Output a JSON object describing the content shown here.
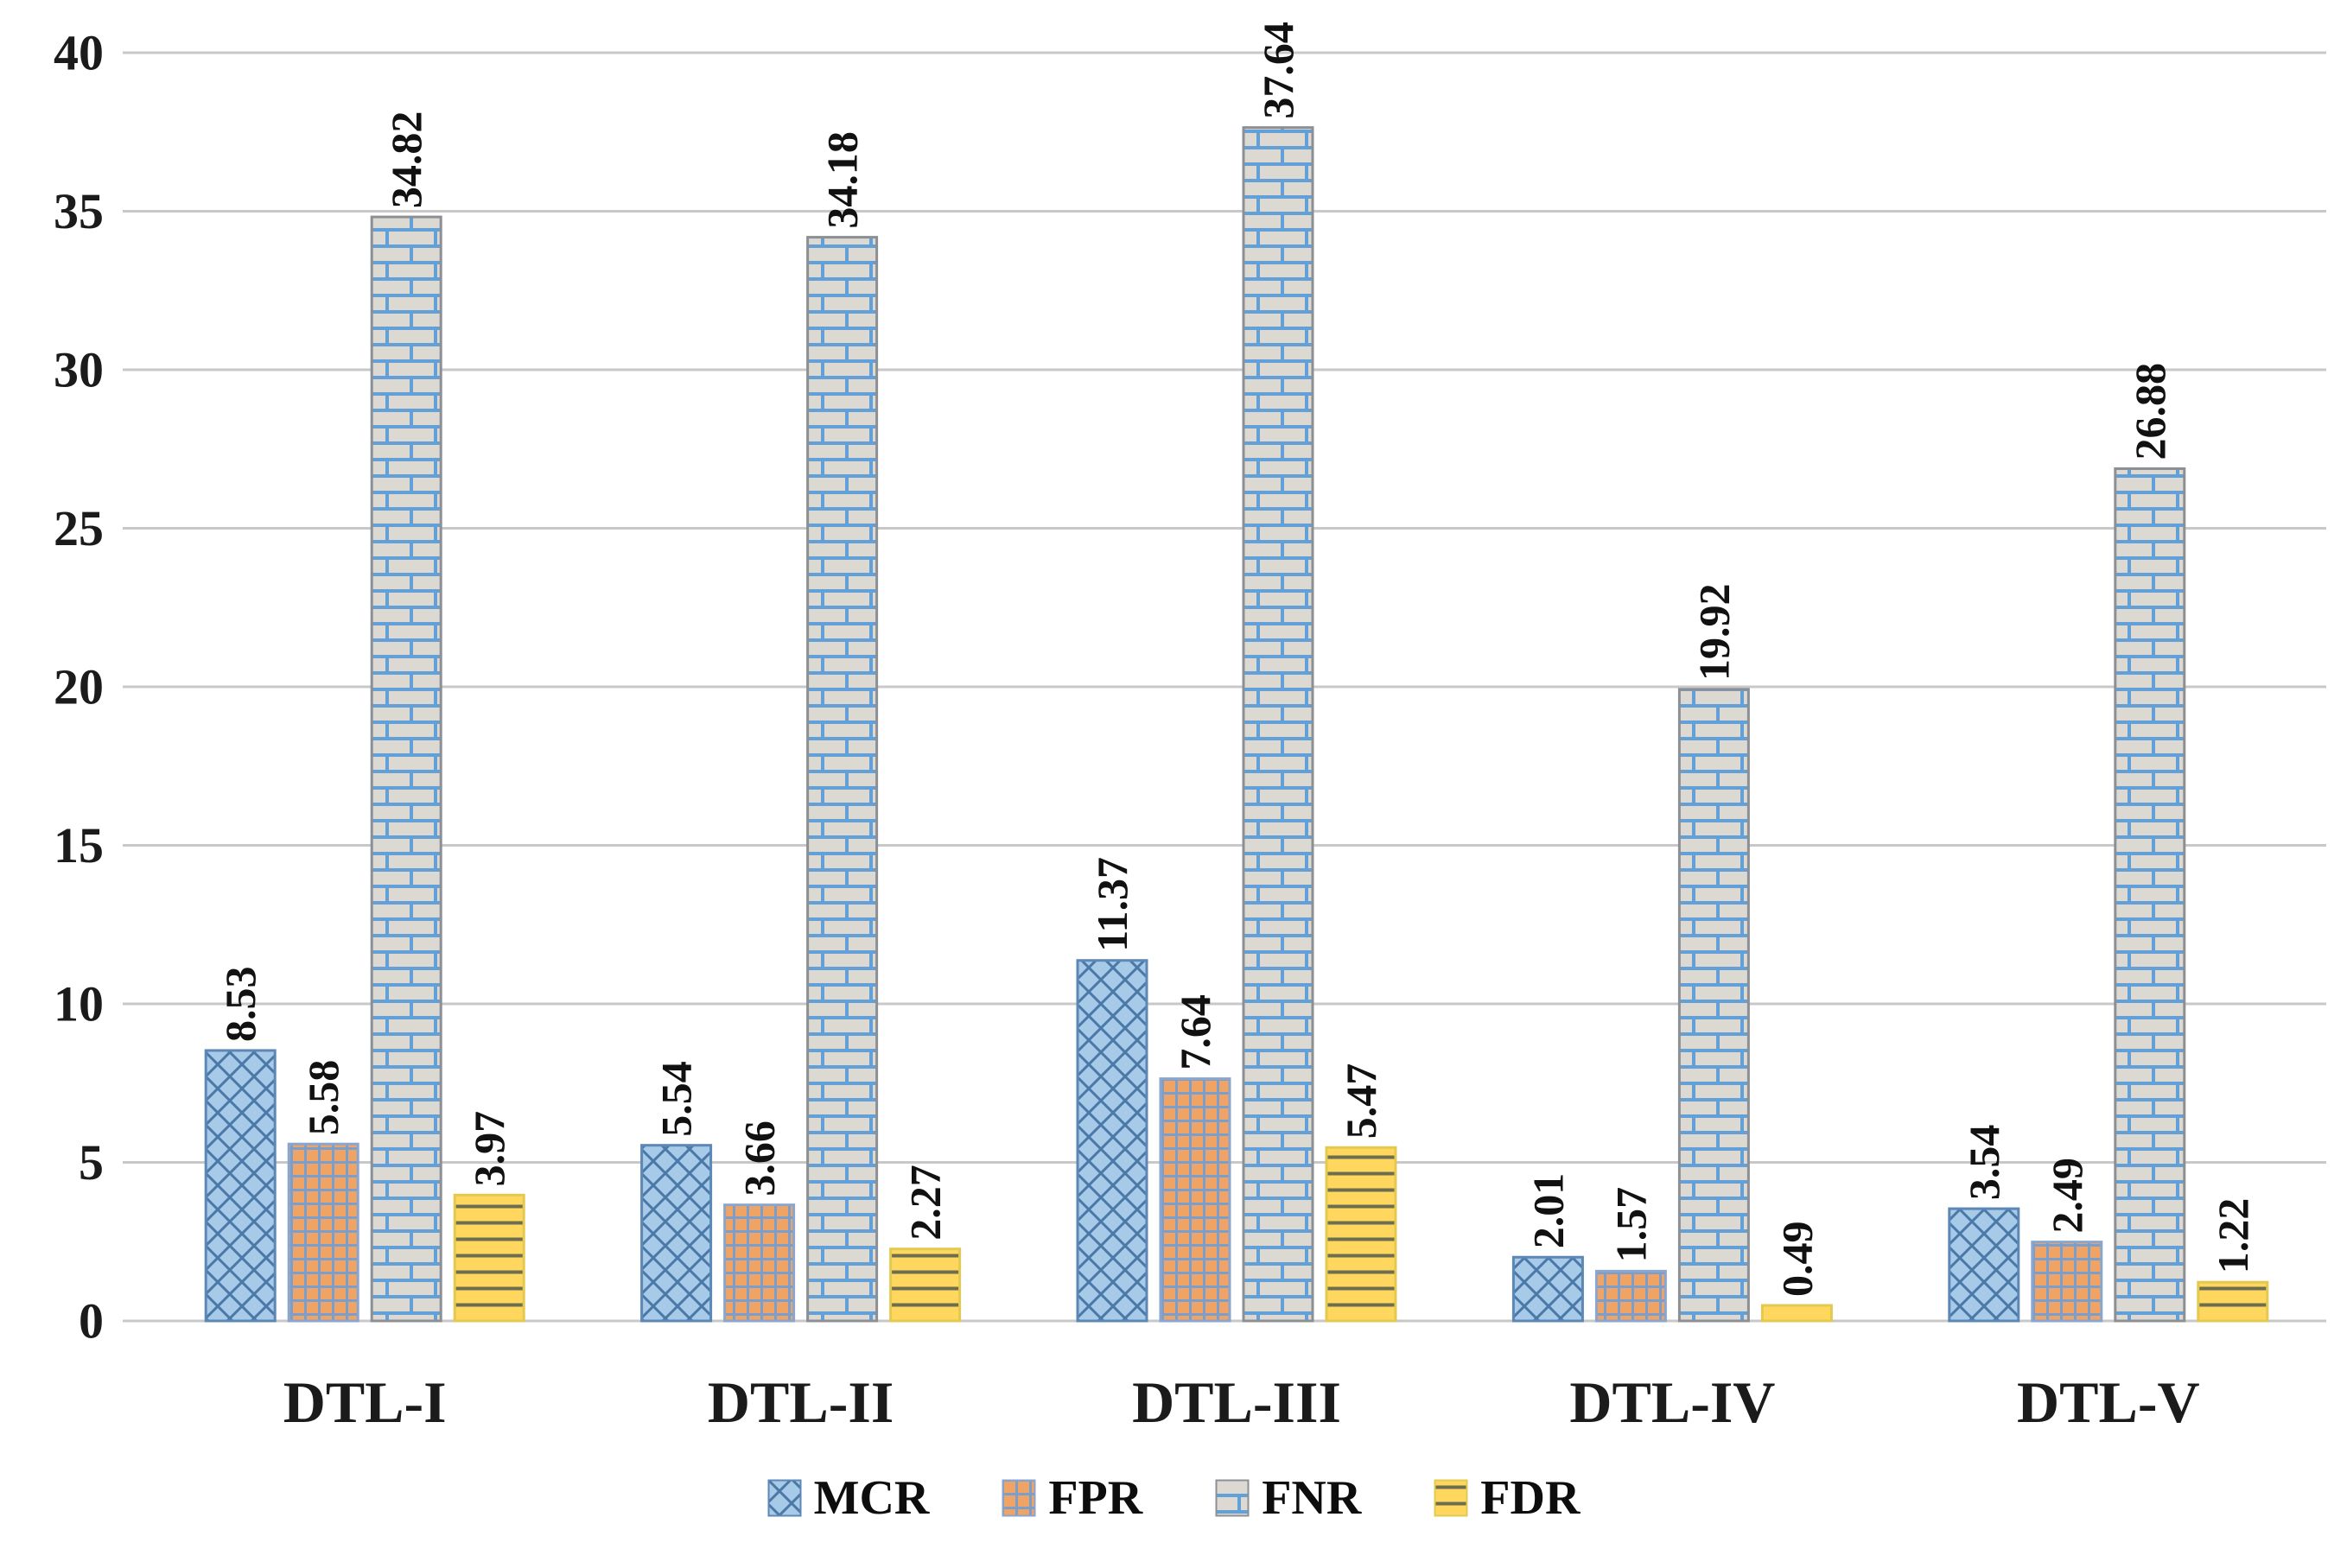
{
  "chart_data": {
    "type": "bar",
    "title": "",
    "categories": [
      "DTL-I",
      "DTL-II",
      "DTL-III",
      "DTL-IV",
      "DTL-V"
    ],
    "series": [
      {
        "name": "MCR",
        "values": [
          8.53,
          5.54,
          11.37,
          2.01,
          3.54
        ],
        "pattern": "diagonal-crosshatch",
        "fill": "#a8cae9",
        "line": "#4a79a8",
        "border": "#5d87b4"
      },
      {
        "name": "FPR",
        "values": [
          5.58,
          3.66,
          7.64,
          1.57,
          2.49
        ],
        "pattern": "small-grid",
        "fill": "#efa365",
        "line": "#7b9ecb",
        "border": "#8aa6cf"
      },
      {
        "name": "FNR",
        "values": [
          34.82,
          34.18,
          37.64,
          19.92,
          26.88
        ],
        "pattern": "brick",
        "fill": "#dcd8d2",
        "line": "#64a0d8",
        "border": "#8c8f94"
      },
      {
        "name": "FDR",
        "values": [
          3.97,
          2.27,
          5.47,
          0.49,
          1.22
        ],
        "pattern": "horizontal-lines",
        "fill": "#ffd75e",
        "line": "#6d6d50",
        "border": "#e3c94f"
      }
    ],
    "value_label_decimals": 2,
    "value_label_orientation": "rotated-90",
    "ylim": [
      0,
      40
    ],
    "ytick_step": 5,
    "ytick_labels": [
      "0",
      "5",
      "10",
      "15",
      "20",
      "25",
      "30",
      "35",
      "40"
    ],
    "grid": "horizontal",
    "gridline_color": "#c8c8c8",
    "axis_label_color": "#1b1b1b",
    "legend_position": "bottom",
    "legend_labels": [
      "MCR",
      "FPR",
      "FNR",
      "FDR"
    ]
  }
}
